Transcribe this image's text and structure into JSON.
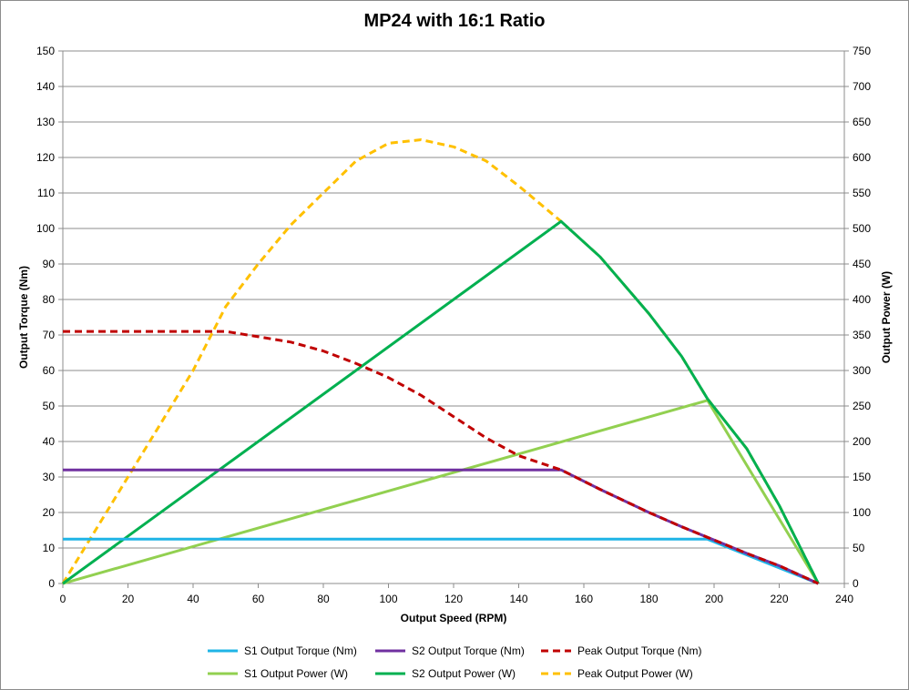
{
  "chart_data": {
    "type": "line",
    "title": "MP24 with 16:1 Ratio",
    "xlabel": "Output Speed (RPM)",
    "ylabel": "Output Torque (Nm)",
    "y2label": "Output Power (W)",
    "xlim": [
      0,
      240
    ],
    "ylim": [
      0,
      150
    ],
    "y2lim": [
      0,
      750
    ],
    "x_ticks": [
      0,
      20,
      40,
      60,
      80,
      100,
      120,
      140,
      160,
      180,
      200,
      220,
      240
    ],
    "y_ticks": [
      0,
      10,
      20,
      30,
      40,
      50,
      60,
      70,
      80,
      90,
      100,
      110,
      120,
      130,
      140,
      150
    ],
    "y2_ticks": [
      0,
      50,
      100,
      150,
      200,
      250,
      300,
      350,
      400,
      450,
      500,
      550,
      600,
      650,
      700,
      750
    ],
    "grid": "horizontal",
    "legend_position": "bottom",
    "series": [
      {
        "name": "S1 Output Torque (Nm)",
        "axis": "left",
        "color": "#1fb4e6",
        "dash": "solid",
        "x": [
          0,
          198,
          232
        ],
        "y": [
          12.5,
          12.5,
          0
        ]
      },
      {
        "name": "S2 Output Torque (Nm)",
        "axis": "left",
        "color": "#7030a0",
        "dash": "solid",
        "x": [
          0,
          153,
          165,
          180,
          190,
          198,
          210,
          220,
          232
        ],
        "y": [
          32,
          32,
          26.5,
          20,
          16,
          13,
          8.5,
          5,
          0
        ]
      },
      {
        "name": "Peak Output Torque (Nm)",
        "axis": "left",
        "color": "#c00000",
        "dash": "dashed",
        "x": [
          0,
          20,
          40,
          50,
          60,
          70,
          80,
          90,
          100,
          110,
          120,
          130,
          140,
          153,
          165,
          180,
          190,
          198,
          210,
          220,
          232
        ],
        "y": [
          71,
          71,
          71,
          71,
          69.5,
          68,
          65.5,
          62,
          58,
          53,
          47,
          41,
          36,
          32,
          26.5,
          20,
          16,
          13,
          8.5,
          5,
          0
        ]
      },
      {
        "name": "S1 Output Power (W)",
        "axis": "right",
        "color": "#92d050",
        "dash": "solid",
        "x": [
          0,
          198,
          232
        ],
        "y": [
          0,
          258,
          0
        ]
      },
      {
        "name": "S2 Output Power (W)",
        "axis": "right",
        "color": "#00b050",
        "dash": "solid",
        "x": [
          0,
          153,
          165,
          180,
          190,
          198,
          210,
          220,
          232
        ],
        "y": [
          0,
          510,
          460,
          380,
          320,
          260,
          190,
          110,
          0
        ]
      },
      {
        "name": "Peak Output Power (W)",
        "axis": "right",
        "color": "#ffc000",
        "dash": "dashed",
        "x": [
          0,
          10,
          20,
          30,
          40,
          50,
          60,
          70,
          80,
          90,
          100,
          110,
          120,
          130,
          140,
          153,
          165,
          180,
          190,
          198,
          210,
          220,
          232
        ],
        "y": [
          0,
          75,
          150,
          225,
          300,
          390,
          450,
          505,
          550,
          595,
          620,
          625,
          615,
          595,
          560,
          510,
          460,
          380,
          320,
          260,
          190,
          110,
          0
        ]
      }
    ]
  }
}
